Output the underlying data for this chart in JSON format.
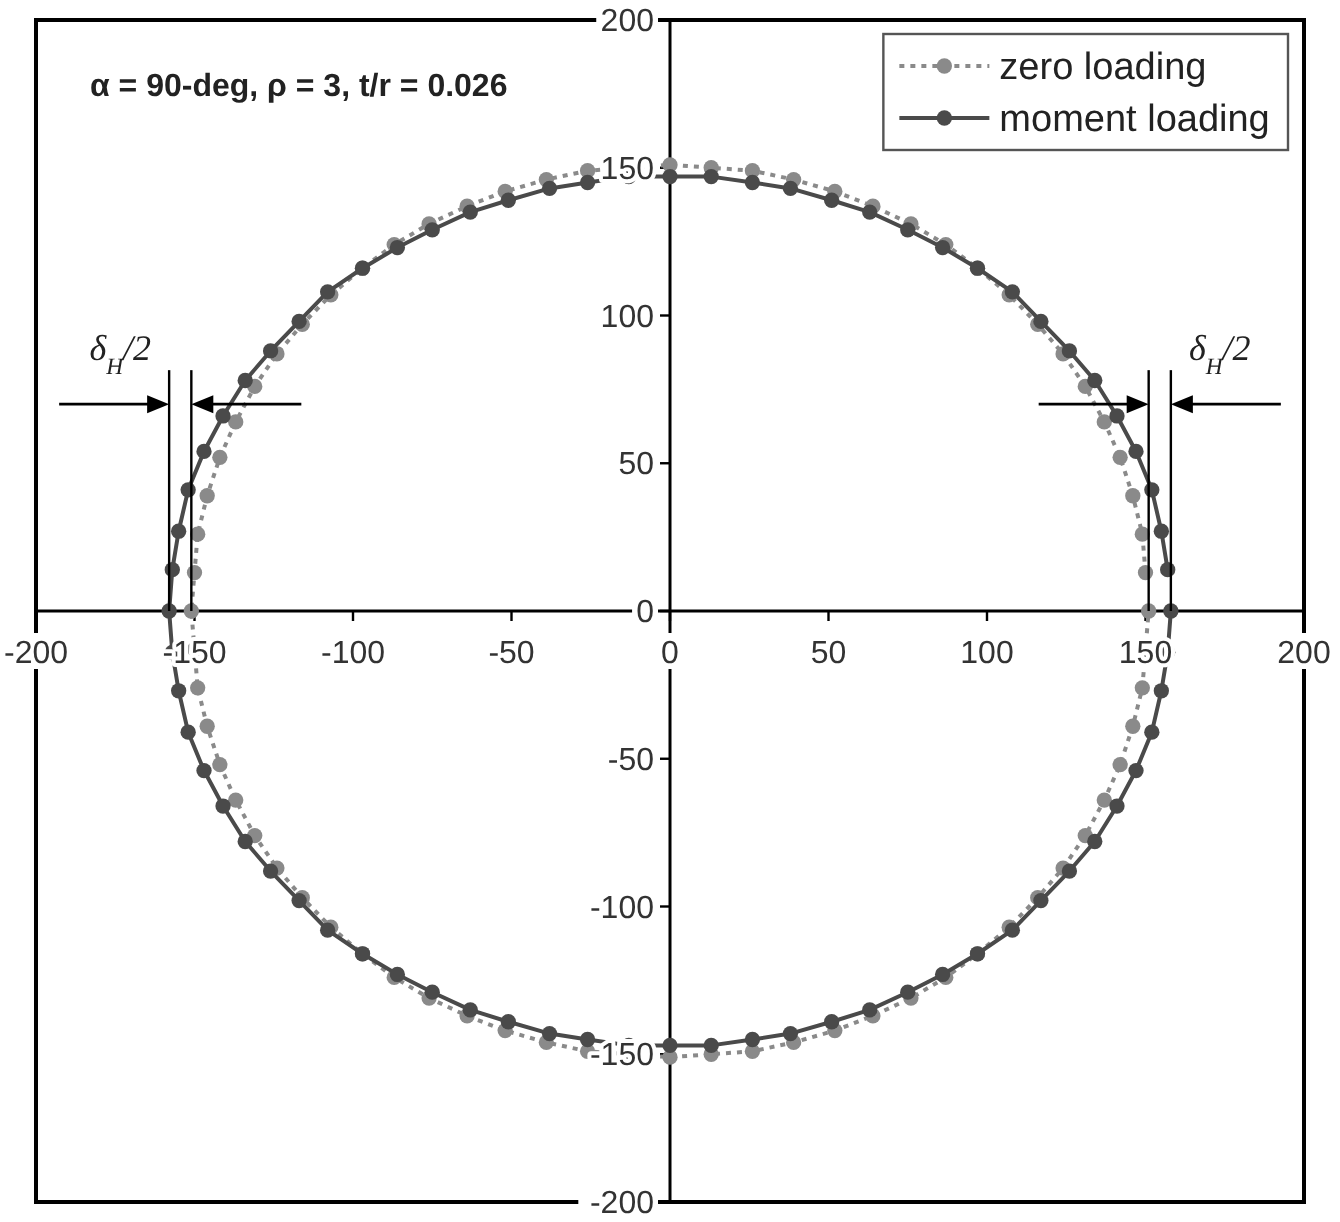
{
  "chart_data": {
    "type": "line",
    "title": "α = 90-deg, ρ = 3, t/r = 0.026",
    "xlim": [
      -200,
      200
    ],
    "ylim": [
      -200,
      200
    ],
    "xticks": [
      -200,
      -150,
      -100,
      -50,
      0,
      50,
      100,
      150,
      200
    ],
    "yticks": [
      -200,
      -150,
      -100,
      -50,
      0,
      50,
      100,
      150,
      200
    ],
    "legend": "top right",
    "marker": "circle",
    "series": [
      {
        "name": "zero loading",
        "color": "#8a8a8a",
        "line_style": "dotted",
        "x": [
          150,
          149,
          146,
          142,
          137,
          131,
          124,
          116,
          107,
          97,
          87,
          76,
          64,
          52,
          39,
          26,
          13,
          0,
          -13,
          -26,
          -39,
          -52,
          -64,
          -76,
          -87,
          -97,
          -107,
          -116,
          -124,
          -131,
          -137,
          -142,
          -146,
          -149,
          -150,
          -151,
          -150,
          -149,
          -146,
          -142,
          -137,
          -131,
          -124,
          -116,
          -107,
          -97,
          -87,
          -76,
          -64,
          -52,
          -39,
          -26,
          -13,
          0,
          13,
          26,
          39,
          52,
          64,
          76,
          87,
          97,
          107,
          116,
          124,
          131,
          137,
          142,
          146,
          149,
          150,
          151
        ],
        "values": [
          13,
          26,
          39,
          52,
          64,
          76,
          87,
          97,
          107,
          116,
          124,
          131,
          137,
          142,
          146,
          149,
          150,
          151,
          150,
          149,
          146,
          142,
          137,
          131,
          124,
          116,
          107,
          97,
          87,
          76,
          64,
          52,
          39,
          26,
          13,
          0,
          -13,
          -26,
          -39,
          -52,
          -64,
          -76,
          -87,
          -97,
          -107,
          -116,
          -124,
          -131,
          -137,
          -142,
          -146,
          -149,
          -150,
          -151,
          -150,
          -149,
          -146,
          -142,
          -137,
          -131,
          -124,
          -116,
          -107,
          -97,
          -87,
          -76,
          -64,
          -52,
          -39,
          -26,
          -13,
          0
        ]
      },
      {
        "name": "moment loading",
        "color": "#4a4a4a",
        "line_style": "solid",
        "x": [
          157,
          155,
          152,
          147,
          141,
          134,
          126,
          117,
          108,
          97,
          86,
          75,
          63,
          51,
          38,
          26,
          13,
          0,
          -13,
          -26,
          -38,
          -51,
          -63,
          -75,
          -86,
          -97,
          -108,
          -117,
          -126,
          -134,
          -141,
          -147,
          -152,
          -155,
          -157,
          -158,
          -157,
          -155,
          -152,
          -147,
          -141,
          -134,
          -126,
          -117,
          -108,
          -97,
          -86,
          -75,
          -63,
          -51,
          -38,
          -26,
          -13,
          0,
          13,
          26,
          38,
          51,
          63,
          75,
          86,
          97,
          108,
          117,
          126,
          134,
          141,
          147,
          152,
          155,
          157,
          158
        ],
        "values": [
          14,
          27,
          41,
          54,
          66,
          78,
          88,
          98,
          108,
          116,
          123,
          129,
          135,
          139,
          143,
          145,
          147,
          147,
          147,
          145,
          143,
          139,
          135,
          129,
          123,
          116,
          108,
          98,
          88,
          78,
          66,
          54,
          41,
          27,
          14,
          0,
          -14,
          -27,
          -41,
          -54,
          -66,
          -78,
          -88,
          -98,
          -108,
          -116,
          -123,
          -129,
          -135,
          -139,
          -143,
          -145,
          -147,
          -147,
          -147,
          -145,
          -143,
          -139,
          -135,
          -129,
          -123,
          -116,
          -108,
          -98,
          -88,
          -78,
          -66,
          -54,
          -41,
          -27,
          -14,
          0
        ]
      }
    ],
    "annotations": [
      {
        "text": "δ$_{H}$/2",
        "x": -158,
        "y": 0
      },
      {
        "text": "δ$_{H}$/2",
        "x": 158,
        "y": 0
      }
    ]
  }
}
